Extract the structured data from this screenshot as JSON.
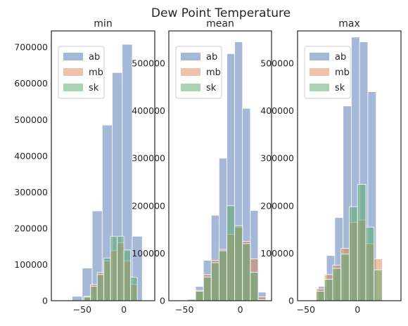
{
  "figure": {
    "title": "Dew Point Temperature"
  },
  "colors": {
    "ab": "#4C72B0",
    "mb": "#DD8452",
    "sk": "#55A868"
  },
  "chart_data": [
    {
      "type": "bar",
      "title": "min",
      "xlabel": "",
      "ylabel": "",
      "xlim": [
        -87,
        37
      ],
      "ylim": [
        0,
        745000
      ],
      "xticks": [
        -50,
        0
      ],
      "xtick_labels": [
        "−50",
        "0"
      ],
      "yticks": [
        0,
        100000,
        200000,
        300000,
        400000,
        500000,
        600000,
        700000
      ],
      "ytick_labels": [
        "0",
        "100000",
        "200000",
        "300000",
        "400000",
        "500000",
        "600000",
        "700000"
      ],
      "legend": [
        "ab",
        "mb",
        "sk"
      ],
      "legend_placement": "top-left",
      "grid": false,
      "series": [
        {
          "name": "ab",
          "edges": [
            -62,
            -50,
            -38,
            -26,
            -14,
            -2,
            10,
            22
          ],
          "values": [
            12000,
            90000,
            248000,
            485000,
            630000,
            708000,
            178000
          ]
        },
        {
          "name": "mb",
          "edges": [
            -48,
            -40,
            -32,
            -24,
            -16,
            -8,
            0,
            8,
            16
          ],
          "values": [
            12000,
            45000,
            78000,
            110000,
            138000,
            160000,
            110000,
            45000
          ]
        },
        {
          "name": "sk",
          "edges": [
            -48,
            -40,
            -32,
            -24,
            -16,
            -8,
            0,
            8,
            16
          ],
          "values": [
            10000,
            40000,
            72000,
            118000,
            178000,
            178000,
            140000,
            65000
          ]
        }
      ]
    },
    {
      "type": "bar",
      "title": "mean",
      "xlabel": "",
      "ylabel": "",
      "xlim": [
        -64,
        28
      ],
      "ylim": [
        0,
        568000
      ],
      "xticks": [
        -50,
        0
      ],
      "xtick_labels": [
        "−50",
        "0"
      ],
      "yticks": [
        0,
        100000,
        200000,
        300000,
        400000,
        500000
      ],
      "ytick_labels": [
        "0",
        "100000",
        "200000",
        "300000",
        "400000",
        "500000"
      ],
      "legend": [
        "ab",
        "mb",
        "sk"
      ],
      "legend_placement": "top-left",
      "grid": false,
      "series": [
        {
          "name": "ab",
          "edges": [
            -47,
            -40,
            -33,
            -26,
            -19,
            -12,
            -5,
            2,
            9,
            16,
            23
          ],
          "values": [
            3000,
            30000,
            85000,
            180000,
            300000,
            520000,
            545000,
            405000,
            190000,
            18000
          ]
        },
        {
          "name": "mb",
          "edges": [
            -40,
            -33,
            -26,
            -19,
            -12,
            -5,
            2,
            9,
            16,
            23
          ],
          "values": [
            22000,
            55000,
            85000,
            108000,
            140000,
            155000,
            125000,
            88000,
            8000
          ]
        },
        {
          "name": "sk",
          "edges": [
            -40,
            -33,
            -26,
            -19,
            -12,
            -5,
            2,
            9,
            16,
            23
          ],
          "values": [
            20000,
            50000,
            80000,
            105000,
            200000,
            158000,
            120000,
            60000,
            2000
          ]
        }
      ]
    },
    {
      "type": "bar",
      "title": "max",
      "xlabel": "",
      "ylabel": "",
      "xlim": [
        -58,
        42
      ],
      "ylim": [
        0,
        568000
      ],
      "xticks": [
        -50,
        0
      ],
      "xtick_labels": [
        "−50",
        "0"
      ],
      "yticks": [
        0,
        100000,
        200000,
        300000,
        400000,
        500000
      ],
      "ytick_labels": [
        "0",
        "100000",
        "200000",
        "300000",
        "400000",
        "500000"
      ],
      "legend": [
        "ab",
        "mb",
        "sk"
      ],
      "legend_placement": "top-left",
      "grid": false,
      "series": [
        {
          "name": "ab",
          "edges": [
            -38,
            -30,
            -22,
            -14,
            -6,
            2,
            10,
            18
          ],
          "values": [
            30000,
            95000,
            175000,
            410000,
            555000,
            545000,
            440000
          ]
        },
        {
          "name": "mb",
          "edges": [
            -40,
            -32,
            -24,
            -16,
            -8,
            0,
            8,
            16,
            24
          ],
          "values": [
            25000,
            55000,
            75000,
            110000,
            165000,
            170000,
            120000,
            88000
          ]
        },
        {
          "name": "sk",
          "edges": [
            -40,
            -32,
            -24,
            -16,
            -8,
            0,
            8,
            16,
            24
          ],
          "values": [
            20000,
            45000,
            68000,
            98000,
            198000,
            245000,
            155000,
            65000
          ]
        }
      ]
    }
  ]
}
